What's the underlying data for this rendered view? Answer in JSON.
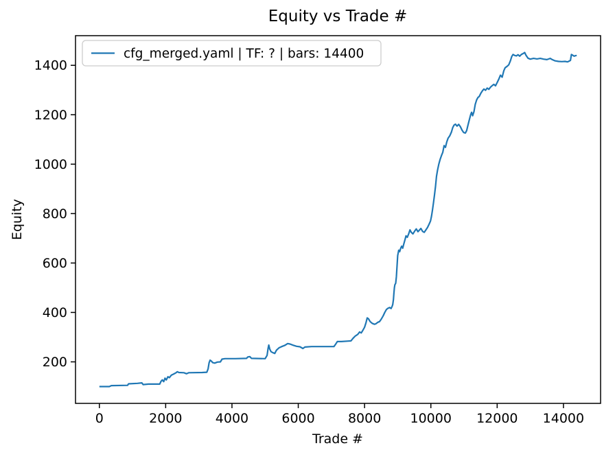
{
  "chart_data": {
    "type": "line",
    "title": "Equity vs Trade #",
    "xlabel": "Trade #",
    "ylabel": "Equity",
    "legend": [
      "cfg_merged.yaml | TF: ? | bars: 14400"
    ],
    "legend_position": "upper left",
    "line_color": "#1f77b4",
    "axes_color": "#000000",
    "grid": false,
    "xlim": [
      -720,
      15120
    ],
    "ylim": [
      32,
      1520
    ],
    "xticks": [
      0,
      2000,
      4000,
      6000,
      8000,
      10000,
      12000,
      14000
    ],
    "yticks": [
      200,
      400,
      600,
      800,
      1000,
      1200,
      1400
    ],
    "series": [
      {
        "name": "cfg_merged.yaml | TF: ? | bars: 14400",
        "points": [
          [
            0,
            100
          ],
          [
            300,
            100
          ],
          [
            360,
            104
          ],
          [
            850,
            105
          ],
          [
            880,
            111
          ],
          [
            1150,
            113
          ],
          [
            1280,
            115
          ],
          [
            1320,
            108
          ],
          [
            1480,
            110
          ],
          [
            1820,
            110
          ],
          [
            1860,
            121
          ],
          [
            1900,
            127
          ],
          [
            1940,
            120
          ],
          [
            1980,
            134
          ],
          [
            2020,
            127
          ],
          [
            2070,
            140
          ],
          [
            2110,
            136
          ],
          [
            2170,
            146
          ],
          [
            2230,
            150
          ],
          [
            2300,
            155
          ],
          [
            2350,
            160
          ],
          [
            2400,
            157
          ],
          [
            2550,
            156
          ],
          [
            2630,
            152
          ],
          [
            2700,
            156
          ],
          [
            3100,
            157
          ],
          [
            3240,
            158
          ],
          [
            3280,
            172
          ],
          [
            3310,
            196
          ],
          [
            3340,
            207
          ],
          [
            3380,
            203
          ],
          [
            3420,
            197
          ],
          [
            3480,
            195
          ],
          [
            3560,
            199
          ],
          [
            3650,
            200
          ],
          [
            3700,
            211
          ],
          [
            3790,
            213
          ],
          [
            4100,
            213
          ],
          [
            4440,
            214
          ],
          [
            4480,
            220
          ],
          [
            4540,
            221
          ],
          [
            4590,
            214
          ],
          [
            5000,
            213
          ],
          [
            5060,
            226
          ],
          [
            5090,
            255
          ],
          [
            5110,
            268
          ],
          [
            5140,
            252
          ],
          [
            5180,
            241
          ],
          [
            5240,
            237
          ],
          [
            5290,
            234
          ],
          [
            5340,
            247
          ],
          [
            5420,
            257
          ],
          [
            5500,
            262
          ],
          [
            5600,
            267
          ],
          [
            5680,
            274
          ],
          [
            5750,
            272
          ],
          [
            5850,
            267
          ],
          [
            5950,
            263
          ],
          [
            6050,
            261
          ],
          [
            6140,
            254
          ],
          [
            6200,
            260
          ],
          [
            6400,
            262
          ],
          [
            7075,
            262
          ],
          [
            7120,
            270
          ],
          [
            7180,
            282
          ],
          [
            7300,
            282
          ],
          [
            7590,
            285
          ],
          [
            7650,
            295
          ],
          [
            7715,
            304
          ],
          [
            7760,
            308
          ],
          [
            7800,
            312
          ],
          [
            7850,
            321
          ],
          [
            7900,
            317
          ],
          [
            7950,
            328
          ],
          [
            8000,
            340
          ],
          [
            8040,
            357
          ],
          [
            8080,
            378
          ],
          [
            8120,
            374
          ],
          [
            8170,
            363
          ],
          [
            8230,
            356
          ],
          [
            8300,
            352
          ],
          [
            8340,
            354
          ],
          [
            8400,
            360
          ],
          [
            8450,
            363
          ],
          [
            8500,
            372
          ],
          [
            8560,
            386
          ],
          [
            8610,
            400
          ],
          [
            8660,
            412
          ],
          [
            8710,
            417
          ],
          [
            8760,
            420
          ],
          [
            8800,
            416
          ],
          [
            8830,
            424
          ],
          [
            8850,
            432
          ],
          [
            8870,
            452
          ],
          [
            8885,
            478
          ],
          [
            8900,
            500
          ],
          [
            8915,
            512
          ],
          [
            8940,
            518
          ],
          [
            8960,
            545
          ],
          [
            8980,
            590
          ],
          [
            9000,
            630
          ],
          [
            9030,
            652
          ],
          [
            9060,
            646
          ],
          [
            9090,
            660
          ],
          [
            9120,
            668
          ],
          [
            9150,
            660
          ],
          [
            9180,
            675
          ],
          [
            9220,
            695
          ],
          [
            9250,
            710
          ],
          [
            9290,
            704
          ],
          [
            9330,
            718
          ],
          [
            9370,
            734
          ],
          [
            9410,
            724
          ],
          [
            9460,
            718
          ],
          [
            9510,
            729
          ],
          [
            9560,
            738
          ],
          [
            9610,
            727
          ],
          [
            9660,
            734
          ],
          [
            9700,
            740
          ],
          [
            9750,
            728
          ],
          [
            9800,
            724
          ],
          [
            9850,
            734
          ],
          [
            9900,
            744
          ],
          [
            9950,
            758
          ],
          [
            9990,
            770
          ],
          [
            10020,
            790
          ],
          [
            10050,
            815
          ],
          [
            10080,
            845
          ],
          [
            10110,
            875
          ],
          [
            10140,
            910
          ],
          [
            10170,
            950
          ],
          [
            10200,
            975
          ],
          [
            10240,
            1000
          ],
          [
            10280,
            1020
          ],
          [
            10320,
            1035
          ],
          [
            10360,
            1048
          ],
          [
            10400,
            1075
          ],
          [
            10440,
            1068
          ],
          [
            10480,
            1090
          ],
          [
            10520,
            1105
          ],
          [
            10570,
            1115
          ],
          [
            10620,
            1130
          ],
          [
            10660,
            1148
          ],
          [
            10700,
            1158
          ],
          [
            10740,
            1162
          ],
          [
            10790,
            1154
          ],
          [
            10840,
            1161
          ],
          [
            10890,
            1152
          ],
          [
            10940,
            1138
          ],
          [
            10990,
            1128
          ],
          [
            11040,
            1126
          ],
          [
            11080,
            1136
          ],
          [
            11120,
            1158
          ],
          [
            11160,
            1180
          ],
          [
            11200,
            1200
          ],
          [
            11230,
            1210
          ],
          [
            11260,
            1196
          ],
          [
            11300,
            1212
          ],
          [
            11340,
            1242
          ],
          [
            11380,
            1260
          ],
          [
            11420,
            1270
          ],
          [
            11460,
            1274
          ],
          [
            11510,
            1288
          ],
          [
            11560,
            1298
          ],
          [
            11600,
            1304
          ],
          [
            11650,
            1299
          ],
          [
            11700,
            1308
          ],
          [
            11750,
            1303
          ],
          [
            11800,
            1312
          ],
          [
            11850,
            1318
          ],
          [
            11900,
            1323
          ],
          [
            11950,
            1317
          ],
          [
            12000,
            1330
          ],
          [
            12050,
            1344
          ],
          [
            12100,
            1360
          ],
          [
            12150,
            1352
          ],
          [
            12200,
            1378
          ],
          [
            12240,
            1390
          ],
          [
            12300,
            1396
          ],
          [
            12350,
            1402
          ],
          [
            12400,
            1418
          ],
          [
            12440,
            1436
          ],
          [
            12480,
            1444
          ],
          [
            12530,
            1440
          ],
          [
            12580,
            1438
          ],
          [
            12630,
            1443
          ],
          [
            12680,
            1437
          ],
          [
            12730,
            1444
          ],
          [
            12790,
            1448
          ],
          [
            12830,
            1452
          ],
          [
            12870,
            1441
          ],
          [
            12930,
            1429
          ],
          [
            13000,
            1425
          ],
          [
            13100,
            1428
          ],
          [
            13200,
            1426
          ],
          [
            13300,
            1428
          ],
          [
            13400,
            1425
          ],
          [
            13500,
            1423
          ],
          [
            13600,
            1428
          ],
          [
            13650,
            1424
          ],
          [
            13750,
            1418
          ],
          [
            13850,
            1416
          ],
          [
            13950,
            1415
          ],
          [
            14050,
            1416
          ],
          [
            14120,
            1414
          ],
          [
            14170,
            1417
          ],
          [
            14210,
            1420
          ],
          [
            14240,
            1444
          ],
          [
            14280,
            1441
          ],
          [
            14320,
            1437
          ],
          [
            14360,
            1439
          ],
          [
            14400,
            1440
          ]
        ]
      }
    ]
  }
}
